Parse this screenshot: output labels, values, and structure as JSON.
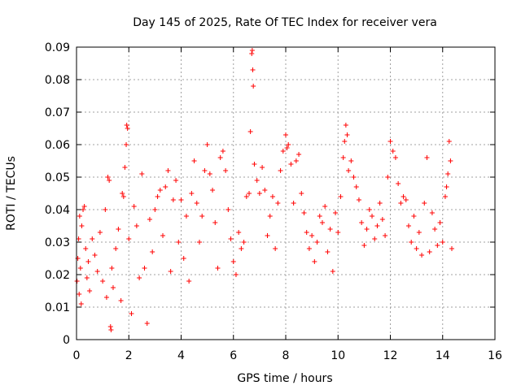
{
  "chart_data": {
    "type": "scatter",
    "title": "Day 145 of 2025, Rate Of TEC Index for receiver vera",
    "xlabel": "GPS time / hours",
    "ylabel": "ROTI / TECUs",
    "xlim": [
      0,
      16
    ],
    "ylim": [
      0,
      0.09
    ],
    "xticks": [
      0,
      2,
      4,
      6,
      8,
      10,
      12,
      14,
      16
    ],
    "xtick_labels": [
      "0",
      "2",
      "4",
      "6",
      "8",
      "10",
      "12",
      "14",
      "16"
    ],
    "yticks": [
      0,
      0.01,
      0.02,
      0.03,
      0.04,
      0.05,
      0.06,
      0.07,
      0.08,
      0.09
    ],
    "ytick_labels": [
      "0",
      "0.01",
      "0.02",
      "0.03",
      "0.04",
      "0.05",
      "0.06",
      "0.07",
      "0.08",
      "0.09"
    ],
    "grid": true,
    "marker": "plus",
    "color": "#ff0000",
    "series": [
      {
        "name": "ROTI",
        "points": [
          [
            0.02,
            0.018
          ],
          [
            0.05,
            0.025
          ],
          [
            0.08,
            0.031
          ],
          [
            0.1,
            0.014
          ],
          [
            0.12,
            0.038
          ],
          [
            0.15,
            0.022
          ],
          [
            0.18,
            0.011
          ],
          [
            0.2,
            0.035
          ],
          [
            0.25,
            0.04
          ],
          [
            0.3,
            0.041
          ],
          [
            0.35,
            0.028
          ],
          [
            0.4,
            0.019
          ],
          [
            0.45,
            0.024
          ],
          [
            0.5,
            0.015
          ],
          [
            0.6,
            0.031
          ],
          [
            0.7,
            0.026
          ],
          [
            0.8,
            0.021
          ],
          [
            0.9,
            0.033
          ],
          [
            1.0,
            0.018
          ],
          [
            1.1,
            0.04
          ],
          [
            1.15,
            0.013
          ],
          [
            1.2,
            0.05
          ],
          [
            1.25,
            0.049
          ],
          [
            1.3,
            0.004
          ],
          [
            1.32,
            0.003
          ],
          [
            1.35,
            0.022
          ],
          [
            1.4,
            0.016
          ],
          [
            1.5,
            0.028
          ],
          [
            1.6,
            0.034
          ],
          [
            1.7,
            0.012
          ],
          [
            1.75,
            0.045
          ],
          [
            1.8,
            0.044
          ],
          [
            1.85,
            0.053
          ],
          [
            1.9,
            0.06
          ],
          [
            1.92,
            0.066
          ],
          [
            1.95,
            0.065
          ],
          [
            2.0,
            0.031
          ],
          [
            2.1,
            0.008
          ],
          [
            2.2,
            0.041
          ],
          [
            2.3,
            0.035
          ],
          [
            2.4,
            0.019
          ],
          [
            2.5,
            0.051
          ],
          [
            2.6,
            0.022
          ],
          [
            2.7,
            0.005
          ],
          [
            2.8,
            0.037
          ],
          [
            2.9,
            0.027
          ],
          [
            3.0,
            0.04
          ],
          [
            3.1,
            0.044
          ],
          [
            3.2,
            0.046
          ],
          [
            3.3,
            0.032
          ],
          [
            3.4,
            0.047
          ],
          [
            3.5,
            0.052
          ],
          [
            3.6,
            0.021
          ],
          [
            3.7,
            0.043
          ],
          [
            3.8,
            0.049
          ],
          [
            3.9,
            0.03
          ],
          [
            4.0,
            0.043
          ],
          [
            4.1,
            0.025
          ],
          [
            4.2,
            0.038
          ],
          [
            4.3,
            0.018
          ],
          [
            4.4,
            0.045
          ],
          [
            4.5,
            0.055
          ],
          [
            4.6,
            0.042
          ],
          [
            4.7,
            0.03
          ],
          [
            4.8,
            0.038
          ],
          [
            4.9,
            0.052
          ],
          [
            5.0,
            0.06
          ],
          [
            5.1,
            0.051
          ],
          [
            5.2,
            0.046
          ],
          [
            5.3,
            0.036
          ],
          [
            5.4,
            0.022
          ],
          [
            5.5,
            0.056
          ],
          [
            5.6,
            0.058
          ],
          [
            5.7,
            0.052
          ],
          [
            5.8,
            0.04
          ],
          [
            5.9,
            0.031
          ],
          [
            6.0,
            0.024
          ],
          [
            6.1,
            0.02
          ],
          [
            6.2,
            0.033
          ],
          [
            6.3,
            0.028
          ],
          [
            6.4,
            0.03
          ],
          [
            6.5,
            0.044
          ],
          [
            6.6,
            0.045
          ],
          [
            6.65,
            0.064
          ],
          [
            6.7,
            0.088
          ],
          [
            6.72,
            0.089
          ],
          [
            6.74,
            0.083
          ],
          [
            6.76,
            0.078
          ],
          [
            6.8,
            0.054
          ],
          [
            6.9,
            0.049
          ],
          [
            7.0,
            0.045
          ],
          [
            7.1,
            0.053
          ],
          [
            7.2,
            0.046
          ],
          [
            7.3,
            0.032
          ],
          [
            7.4,
            0.038
          ],
          [
            7.5,
            0.044
          ],
          [
            7.6,
            0.028
          ],
          [
            7.7,
            0.042
          ],
          [
            7.8,
            0.052
          ],
          [
            7.9,
            0.058
          ],
          [
            8.0,
            0.063
          ],
          [
            8.05,
            0.059
          ],
          [
            8.1,
            0.06
          ],
          [
            8.2,
            0.054
          ],
          [
            8.3,
            0.042
          ],
          [
            8.4,
            0.055
          ],
          [
            8.5,
            0.057
          ],
          [
            8.6,
            0.045
          ],
          [
            8.7,
            0.039
          ],
          [
            8.8,
            0.033
          ],
          [
            8.9,
            0.028
          ],
          [
            9.0,
            0.032
          ],
          [
            9.1,
            0.024
          ],
          [
            9.2,
            0.03
          ],
          [
            9.3,
            0.038
          ],
          [
            9.4,
            0.036
          ],
          [
            9.5,
            0.041
          ],
          [
            9.6,
            0.027
          ],
          [
            9.7,
            0.034
          ],
          [
            9.8,
            0.021
          ],
          [
            9.9,
            0.039
          ],
          [
            10.0,
            0.033
          ],
          [
            10.1,
            0.044
          ],
          [
            10.2,
            0.056
          ],
          [
            10.25,
            0.061
          ],
          [
            10.3,
            0.066
          ],
          [
            10.35,
            0.063
          ],
          [
            10.4,
            0.052
          ],
          [
            10.5,
            0.055
          ],
          [
            10.6,
            0.05
          ],
          [
            10.7,
            0.047
          ],
          [
            10.8,
            0.043
          ],
          [
            10.9,
            0.036
          ],
          [
            11.0,
            0.029
          ],
          [
            11.1,
            0.034
          ],
          [
            11.2,
            0.04
          ],
          [
            11.3,
            0.038
          ],
          [
            11.4,
            0.031
          ],
          [
            11.5,
            0.035
          ],
          [
            11.6,
            0.042
          ],
          [
            11.7,
            0.037
          ],
          [
            11.8,
            0.032
          ],
          [
            11.9,
            0.05
          ],
          [
            12.0,
            0.061
          ],
          [
            12.1,
            0.058
          ],
          [
            12.2,
            0.056
          ],
          [
            12.3,
            0.048
          ],
          [
            12.4,
            0.042
          ],
          [
            12.5,
            0.044
          ],
          [
            12.6,
            0.043
          ],
          [
            12.7,
            0.035
          ],
          [
            12.8,
            0.03
          ],
          [
            12.9,
            0.038
          ],
          [
            13.0,
            0.028
          ],
          [
            13.1,
            0.033
          ],
          [
            13.2,
            0.026
          ],
          [
            13.3,
            0.042
          ],
          [
            13.4,
            0.056
          ],
          [
            13.5,
            0.027
          ],
          [
            13.6,
            0.039
          ],
          [
            13.7,
            0.034
          ],
          [
            13.8,
            0.029
          ],
          [
            13.9,
            0.036
          ],
          [
            14.0,
            0.03
          ],
          [
            14.1,
            0.044
          ],
          [
            14.15,
            0.047
          ],
          [
            14.2,
            0.051
          ],
          [
            14.25,
            0.061
          ],
          [
            14.3,
            0.055
          ],
          [
            14.35,
            0.028
          ]
        ]
      }
    ]
  }
}
